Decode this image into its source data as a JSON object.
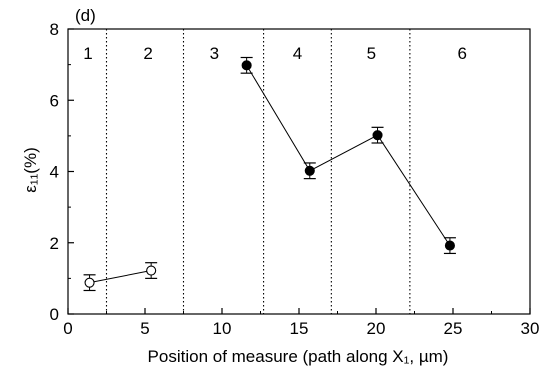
{
  "chart_data": {
    "type": "scatter",
    "panel_label": "(d)",
    "xlabel": "Position of measure (path along X₁, µm)",
    "ylabel": "ε₁₁(%)",
    "xlim": [
      0,
      30
    ],
    "ylim": [
      0,
      8
    ],
    "x_ticks": [
      0,
      5,
      10,
      15,
      20,
      25,
      30
    ],
    "y_ticks": [
      0,
      2,
      4,
      6,
      8
    ],
    "grid": false,
    "region_boundaries": [
      2.5,
      7.5,
      12.7,
      17.1,
      22.2
    ],
    "regions": [
      {
        "label": "1",
        "x": 1.3
      },
      {
        "label": "2",
        "x": 5.2
      },
      {
        "label": "3",
        "x": 9.5
      },
      {
        "label": "4",
        "x": 14.9
      },
      {
        "label": "5",
        "x": 19.7
      },
      {
        "label": "6",
        "x": 25.6
      }
    ],
    "series": [
      {
        "marker": "open-circle",
        "x": [
          1.4,
          5.4
        ],
        "y": [
          0.88,
          1.22
        ],
        "err": [
          0.22,
          0.22
        ]
      },
      {
        "marker": "filled-circle",
        "x": [
          11.6,
          15.7,
          20.1,
          24.8
        ],
        "y": [
          6.98,
          4.02,
          5.02,
          1.92
        ],
        "err": [
          0.22,
          0.22,
          0.22,
          0.22
        ]
      }
    ]
  }
}
